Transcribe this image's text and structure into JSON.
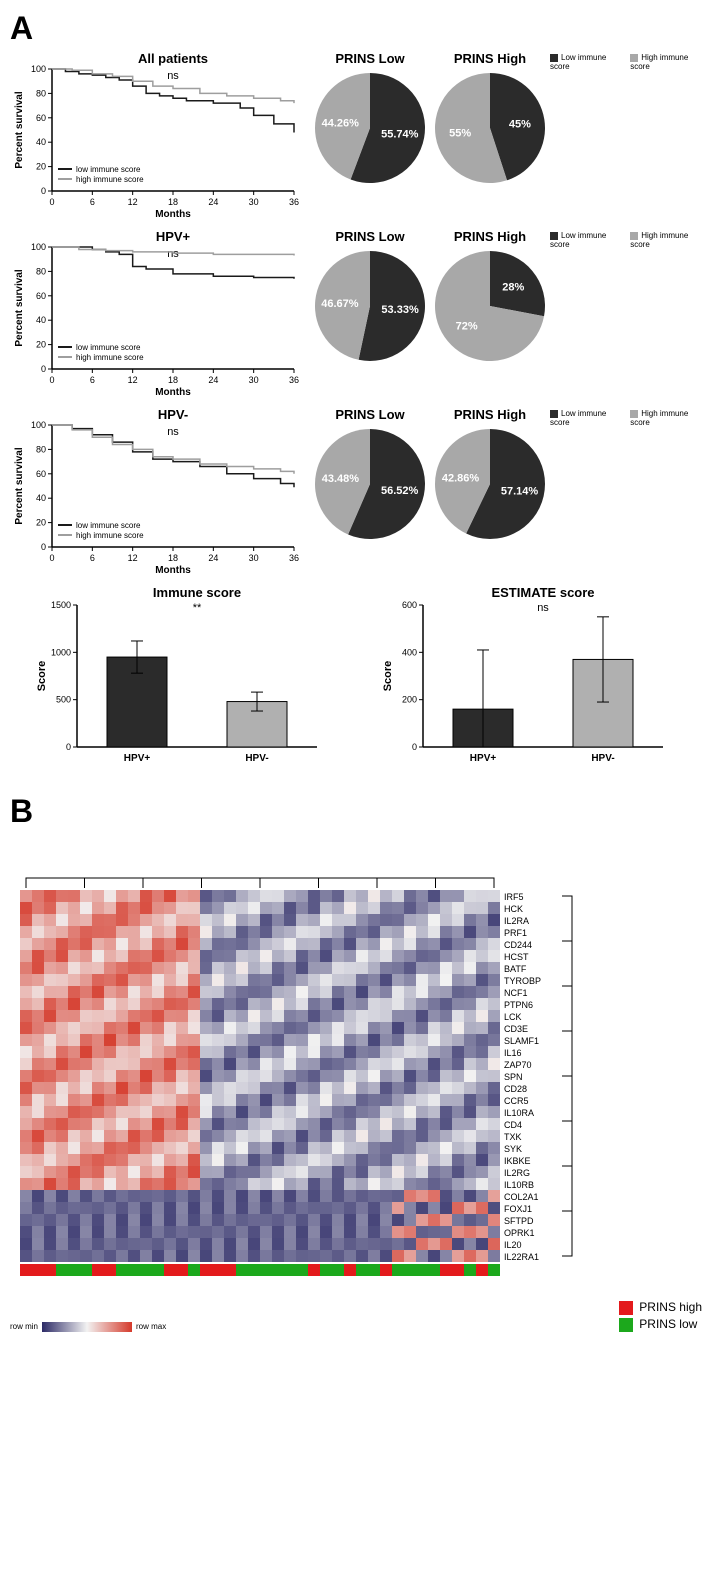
{
  "panelA": {
    "label": "A",
    "rows": [
      {
        "km": {
          "title": "All patients",
          "sig": "ns",
          "ylabel": "Percent survival",
          "xlabel": "Months",
          "xticks": [
            0,
            6,
            12,
            18,
            24,
            30,
            36
          ],
          "yticks": [
            0,
            20,
            40,
            60,
            80,
            100
          ],
          "xlim": [
            0,
            36
          ],
          "ylim": [
            0,
            100
          ],
          "line_low_color": "#1a1a1a",
          "line_high_color": "#9e9e9e",
          "legend_low": "low immune score",
          "legend_high": "high immune score",
          "low_points": [
            [
              0,
              100
            ],
            [
              2,
              98
            ],
            [
              4,
              96
            ],
            [
              6,
              95
            ],
            [
              8,
              93
            ],
            [
              10,
              91
            ],
            [
              12,
              86
            ],
            [
              14,
              80
            ],
            [
              16,
              78
            ],
            [
              18,
              76
            ],
            [
              20,
              74
            ],
            [
              24,
              72
            ],
            [
              28,
              68
            ],
            [
              30,
              62
            ],
            [
              33,
              55
            ],
            [
              36,
              48
            ]
          ],
          "high_points": [
            [
              0,
              100
            ],
            [
              3,
              99
            ],
            [
              6,
              96
            ],
            [
              9,
              94
            ],
            [
              12,
              90
            ],
            [
              15,
              86
            ],
            [
              18,
              84
            ],
            [
              22,
              80
            ],
            [
              26,
              78
            ],
            [
              30,
              76
            ],
            [
              34,
              74
            ],
            [
              36,
              72
            ]
          ]
        },
        "pies": {
          "low_title": "PRINS Low",
          "high_title": "PRINS High",
          "low_dark_pct": "55.74%",
          "low_light_pct": "44.26%",
          "high_dark_pct": "45%",
          "high_light_pct": "55%",
          "low_dark": 55.74,
          "high_dark": 45.0,
          "dark_color": "#2b2b2b",
          "light_color": "#a8a8a8",
          "legend_dark": "Low immune score",
          "legend_light": "High immune score"
        }
      },
      {
        "km": {
          "title": "HPV+",
          "sig": "ns",
          "ylabel": "Percent survival",
          "xlabel": "Months",
          "xticks": [
            0,
            6,
            12,
            18,
            24,
            30,
            36
          ],
          "yticks": [
            0,
            20,
            40,
            60,
            80,
            100
          ],
          "xlim": [
            0,
            36
          ],
          "ylim": [
            0,
            100
          ],
          "line_low_color": "#1a1a1a",
          "line_high_color": "#9e9e9e",
          "legend_low": "low immune score",
          "legend_high": "high immune score",
          "low_points": [
            [
              0,
              100
            ],
            [
              4,
              100
            ],
            [
              6,
              98
            ],
            [
              8,
              96
            ],
            [
              10,
              94
            ],
            [
              12,
              84
            ],
            [
              14,
              82
            ],
            [
              18,
              78
            ],
            [
              24,
              76
            ],
            [
              30,
              75
            ],
            [
              36,
              74
            ]
          ],
          "high_points": [
            [
              0,
              100
            ],
            [
              4,
              98
            ],
            [
              8,
              97
            ],
            [
              12,
              96
            ],
            [
              18,
              95
            ],
            [
              24,
              94
            ],
            [
              30,
              94
            ],
            [
              36,
              93
            ]
          ]
        },
        "pies": {
          "low_title": "PRINS Low",
          "high_title": "PRINS High",
          "low_dark_pct": "53.33%",
          "low_light_pct": "46.67%",
          "high_dark_pct": "28%",
          "high_light_pct": "72%",
          "low_dark": 53.33,
          "high_dark": 28.0,
          "dark_color": "#2b2b2b",
          "light_color": "#a8a8a8",
          "legend_dark": "Low immune score",
          "legend_light": "High immune score"
        }
      },
      {
        "km": {
          "title": "HPV-",
          "sig": "ns",
          "ylabel": "Percent survival",
          "xlabel": "Months",
          "xticks": [
            0,
            6,
            12,
            18,
            24,
            30,
            36
          ],
          "yticks": [
            0,
            20,
            40,
            60,
            80,
            100
          ],
          "xlim": [
            0,
            36
          ],
          "ylim": [
            0,
            100
          ],
          "line_low_color": "#1a1a1a",
          "line_high_color": "#9e9e9e",
          "legend_low": "low immune score",
          "legend_high": "high immune score",
          "low_points": [
            [
              0,
              100
            ],
            [
              3,
              97
            ],
            [
              6,
              92
            ],
            [
              9,
              86
            ],
            [
              12,
              78
            ],
            [
              15,
              72
            ],
            [
              18,
              70
            ],
            [
              22,
              66
            ],
            [
              26,
              60
            ],
            [
              30,
              56
            ],
            [
              34,
              52
            ],
            [
              36,
              49
            ]
          ],
          "high_points": [
            [
              0,
              100
            ],
            [
              3,
              96
            ],
            [
              6,
              90
            ],
            [
              9,
              84
            ],
            [
              12,
              80
            ],
            [
              15,
              74
            ],
            [
              18,
              72
            ],
            [
              22,
              68
            ],
            [
              26,
              66
            ],
            [
              30,
              64
            ],
            [
              34,
              62
            ],
            [
              36,
              60
            ]
          ]
        },
        "pies": {
          "low_title": "PRINS Low",
          "high_title": "PRINS High",
          "low_dark_pct": "56.52%",
          "low_light_pct": "43.48%",
          "high_dark_pct": "57.14%",
          "high_light_pct": "42.86%",
          "low_dark": 56.52,
          "high_dark": 57.14,
          "dark_color": "#2b2b2b",
          "light_color": "#a8a8a8",
          "legend_dark": "Low immune score",
          "legend_light": "High immune score"
        }
      }
    ],
    "bars": {
      "immune": {
        "title": "Immune score",
        "sig": "**",
        "ylabel": "Score",
        "ylim": [
          0,
          1500
        ],
        "ytick_step": 500,
        "categories": [
          "HPV+",
          "HPV-"
        ],
        "values": [
          950,
          480
        ],
        "errors": [
          170,
          100
        ],
        "colors": [
          "#2b2b2b",
          "#b0b0b0"
        ],
        "bar_width": 0.5
      },
      "estimate": {
        "title": "ESTIMATE score",
        "sig": "ns",
        "ylabel": "Score",
        "ylim": [
          0,
          600
        ],
        "ytick_step": 200,
        "categories": [
          "HPV+",
          "HPV-"
        ],
        "values": [
          160,
          370
        ],
        "errors": [
          250,
          180
        ],
        "colors": [
          "#2b2b2b",
          "#b0b0b0"
        ],
        "bar_width": 0.5
      }
    }
  },
  "panelB": {
    "label": "B",
    "heatmap": {
      "genes": [
        "IRF5",
        "HCK",
        "IL2RA",
        "PRF1",
        "CD244",
        "HCST",
        "BATF",
        "TYROBP",
        "NCF1",
        "PTPN6",
        "LCK",
        "CD3E",
        "SLAMF1",
        "IL16",
        "ZAP70",
        "SPN",
        "CD28",
        "CCR5",
        "IL10RA",
        "CD4",
        "TXK",
        "SYK",
        "IKBKE",
        "IL2RG",
        "IL10RB",
        "COL2A1",
        "FOXJ1",
        "SFTPD",
        "OPRK1",
        "IL20",
        "IL22RA1"
      ],
      "n_samples": 40,
      "colorscale_min": "#2c2a66",
      "colorscale_mid": "#f2f2f2",
      "colorscale_max": "#d53a2b",
      "row_min_label": "row min",
      "row_max_label": "row max",
      "prins_high_color": "#e31a1c",
      "prins_low_color": "#1ca81c",
      "prins_legend_high": "PRINS high",
      "prins_legend_low": "PRINS low",
      "column_prins": [
        1,
        1,
        1,
        0,
        0,
        0,
        1,
        1,
        0,
        0,
        0,
        0,
        1,
        1,
        0,
        1,
        1,
        1,
        0,
        0,
        0,
        0,
        0,
        0,
        1,
        0,
        0,
        1,
        0,
        0,
        1,
        0,
        0,
        0,
        0,
        1,
        1,
        0,
        1,
        0
      ]
    }
  }
}
